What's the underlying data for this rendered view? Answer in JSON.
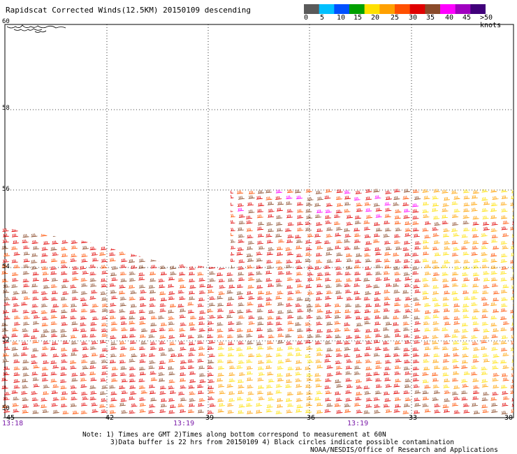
{
  "title": "Rapidscat Corrected Winds(12.5KM) 20150109 descending",
  "legend": {
    "colors": [
      "#5a5a5a",
      "#00c0ff",
      "#0050ff",
      "#00a000",
      "#ffe000",
      "#ffa000",
      "#ff5000",
      "#e00000",
      "#8a4a2a",
      "#ff00ff",
      "#a000c0",
      "#40007a"
    ],
    "labels": [
      "0",
      "5",
      "10",
      "15",
      "20",
      "25",
      "30",
      "35",
      "40",
      "45",
      ">50 knots"
    ]
  },
  "latitudes": [
    "60",
    "58",
    "56",
    "54",
    "52",
    "50"
  ],
  "longitudes": [
    "-45",
    "-42",
    "-39",
    "-36",
    "-33",
    "-30"
  ],
  "times": [
    "13:18",
    "13:19",
    "13:19"
  ],
  "notes": "Note: 1) Times are GMT 2)Times along bottom correspond to measurement at 60N\n       3)Data buffer is 22 hrs from 20150109 4) Black circles indicate possible contamination",
  "credit": "NOAA/NESDIS/Office of Research and Applications"
}
